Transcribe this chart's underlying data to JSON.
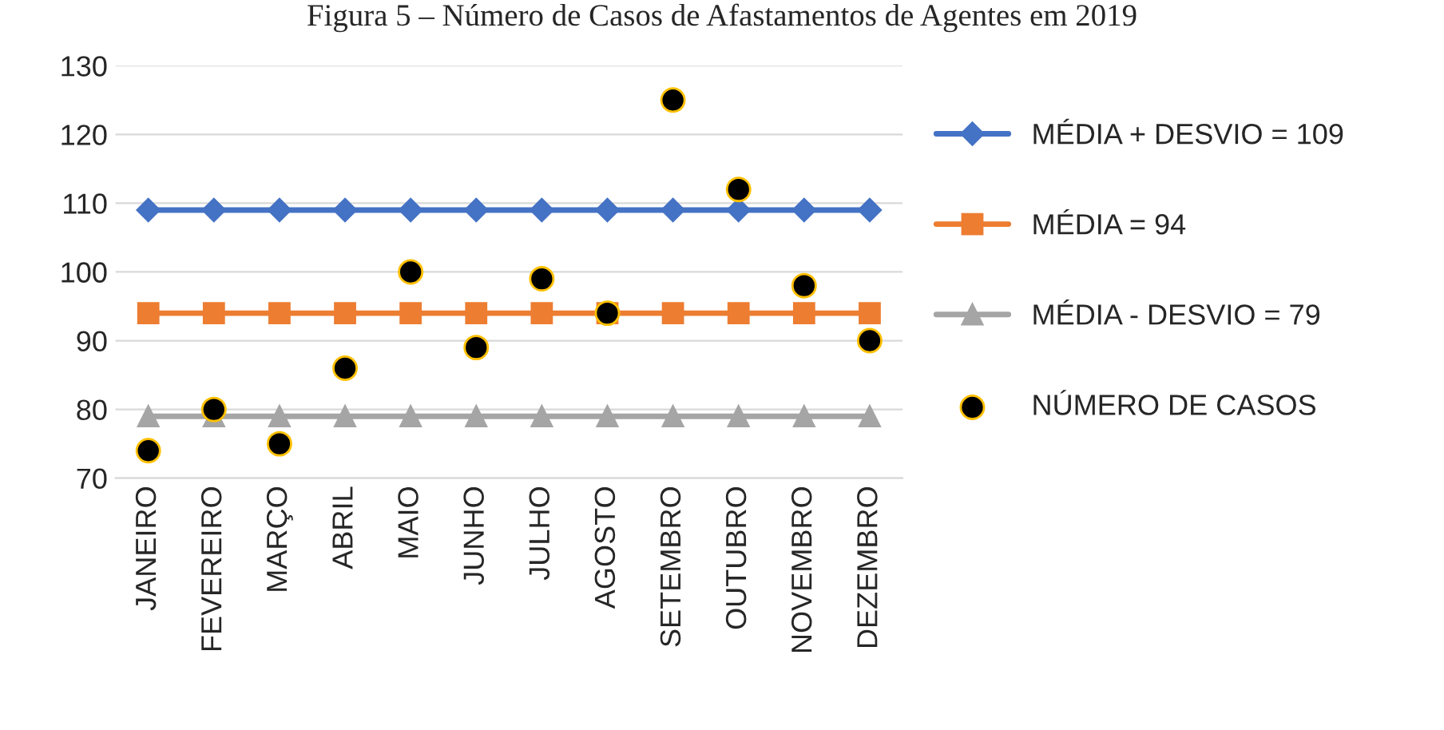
{
  "chart_data": {
    "type": "line",
    "title": "Figura 5 – Número de Casos de Afastamentos de Agentes em 2019",
    "categories": [
      "JANEIRO",
      "FEVEREIRO",
      "MARÇO",
      "ABRIL",
      "MAIO",
      "JUNHO",
      "JULHO",
      "AGOSTO",
      "SETEMBRO",
      "OUTUBRO",
      "NOVEMBRO",
      "DEZEMBRO"
    ],
    "series": [
      {
        "name": "MÉDIA + DESVIO = 109",
        "type": "line",
        "marker": "diamond",
        "color": "#4472c4",
        "values": [
          109,
          109,
          109,
          109,
          109,
          109,
          109,
          109,
          109,
          109,
          109,
          109
        ]
      },
      {
        "name": "MÉDIA = 94",
        "type": "line",
        "marker": "square",
        "color": "#ed7d31",
        "values": [
          94,
          94,
          94,
          94,
          94,
          94,
          94,
          94,
          94,
          94,
          94,
          94
        ]
      },
      {
        "name": "MÉDIA - DESVIO = 79",
        "type": "line",
        "marker": "triangle",
        "color": "#a5a5a5",
        "values": [
          79,
          79,
          79,
          79,
          79,
          79,
          79,
          79,
          79,
          79,
          79,
          79
        ]
      },
      {
        "name": "NÚMERO DE CASOS",
        "type": "scatter",
        "marker": "circle",
        "color": "#000000",
        "values": [
          74,
          80,
          75,
          86,
          100,
          89,
          99,
          94,
          125,
          112,
          98,
          90
        ]
      }
    ],
    "ylim": [
      70,
      130
    ],
    "yticks": [
      70,
      80,
      90,
      100,
      110,
      120,
      130
    ],
    "grid": "y",
    "legend": "right"
  }
}
